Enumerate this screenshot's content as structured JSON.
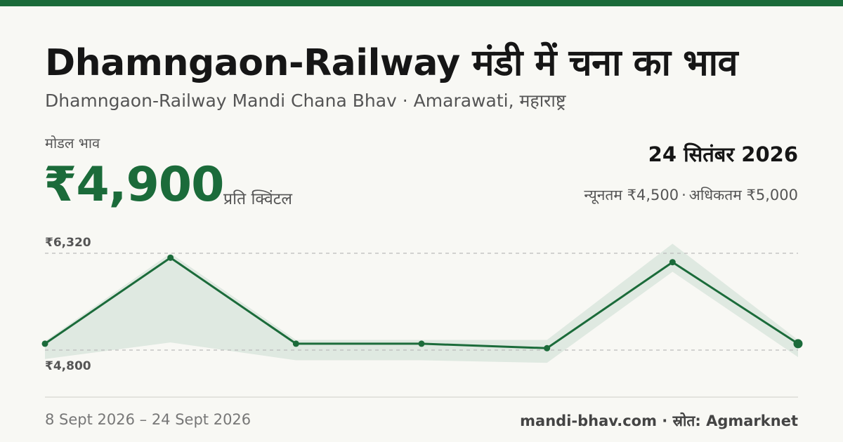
{
  "header": {
    "title": "Dhamngaon-Railway मंडी में चना का भाव",
    "subtitle": "Dhamngaon-Railway Mandi Chana Bhav · Amarawati, महाराष्ट्र"
  },
  "price": {
    "label": "मोडल भाव",
    "value": "₹4,900",
    "unit": "प्रति क्विंटल"
  },
  "summary": {
    "date": "24 सितंबर 2026",
    "min_text": "न्यूनतम ₹4,500",
    "separator": "·",
    "max_text": "अधिकतम ₹5,000"
  },
  "footer": {
    "date_range": "8 Sept 2026 – 24 Sept 2026",
    "source": "mandi-bhav.com · स्रोत: Agmarknet"
  },
  "colors": {
    "accent": "#1b6b3a",
    "band": "#dfe9e1",
    "gridline": "#bbbbbb"
  },
  "chart_data": {
    "type": "line",
    "x": [
      "8 Sept 2026",
      "",
      "",
      "",
      "",
      "",
      "24 Sept 2026"
    ],
    "series": [
      {
        "values": [
          4900,
          6250,
          4900,
          4900,
          4830,
          6180,
          4900
        ]
      }
    ],
    "band": {
      "min": [
        4660,
        4920,
        4640,
        4640,
        4600,
        6030,
        4690
      ],
      "max": [
        4940,
        6320,
        4960,
        4960,
        4960,
        6470,
        4960
      ]
    },
    "y_reference_labels": [
      "₹6,320",
      "₹4,800"
    ],
    "y_reference_values": [
      6320,
      4800
    ],
    "grid": false
  }
}
